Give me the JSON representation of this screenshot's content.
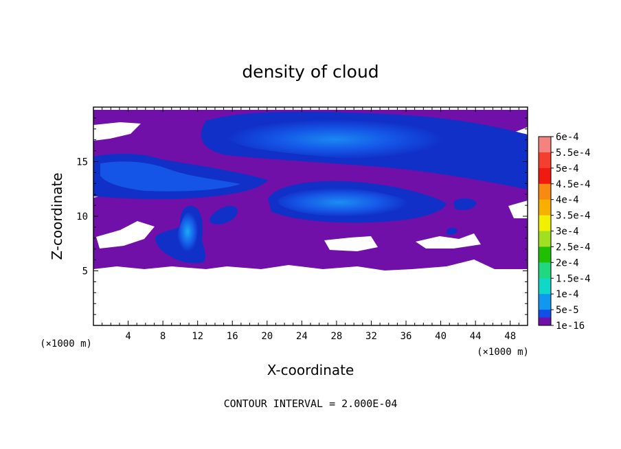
{
  "chart_data": {
    "type": "heatmap",
    "title": "density of cloud",
    "xlabel": "X-coordinate",
    "ylabel": "Z-coordinate",
    "x_units": "(×1000 m)",
    "z_units": "(×1000 m)",
    "xlim": [
      0,
      50
    ],
    "ylim": [
      0,
      20
    ],
    "x_ticks": [
      4,
      8,
      12,
      16,
      20,
      24,
      28,
      32,
      36,
      40,
      44,
      48
    ],
    "y_ticks": [
      5,
      10,
      15
    ],
    "contour_interval_label": "CONTOUR INTERVAL = 2.000E-04",
    "colorbar": {
      "labels": [
        "6e-4",
        "5.5e-4",
        "5e-4",
        "4.5e-4",
        "4e-4",
        "3.5e-4",
        "3e-4",
        "2.5e-4",
        "2e-4",
        "1.5e-4",
        "1e-4",
        "5e-5",
        "1e-16"
      ],
      "colors": [
        "#f4837f",
        "#f43e2e",
        "#f01a10",
        "#f88a10",
        "#f8b000",
        "#f0f000",
        "#a0e020",
        "#20c000",
        "#20d880",
        "#10d8c8",
        "#1098f0",
        "#1050e8",
        "#0010b8"
      ],
      "bottom_color": "#7010a8"
    },
    "regions": [
      {
        "label": "cloud-base-layer",
        "level": "1e-16",
        "x": [
          0,
          50
        ],
        "z": [
          5.3,
          19.8
        ]
      },
      {
        "label": "upper-band",
        "level": "5e-5",
        "x": [
          14,
          50
        ],
        "z": [
          13,
          19.4
        ]
      },
      {
        "label": "upper-core",
        "level": "1e-4",
        "x": [
          18,
          46
        ],
        "z": [
          15.5,
          19
        ]
      },
      {
        "label": "left-band",
        "level": "5e-5",
        "x": [
          0,
          20
        ],
        "z": [
          12,
          16
        ]
      },
      {
        "label": "middle-cell",
        "level": "5e-5",
        "x": [
          20,
          40
        ],
        "z": [
          9.5,
          13
        ]
      },
      {
        "label": "middle-core",
        "level": "1e-4",
        "x": [
          22,
          36
        ],
        "z": [
          10,
          12.5
        ]
      },
      {
        "label": "convective-plume",
        "level": "1.5e-4",
        "x": [
          7,
          13
        ],
        "z": [
          6.2,
          10.7
        ]
      },
      {
        "label": "small-cell",
        "level": "5e-5",
        "x": [
          13,
          17
        ],
        "z": [
          9.3,
          11
        ]
      },
      {
        "label": "right-cell",
        "level": "5e-5",
        "x": [
          41,
          44
        ],
        "z": [
          10.2,
          11.3
        ]
      }
    ]
  }
}
